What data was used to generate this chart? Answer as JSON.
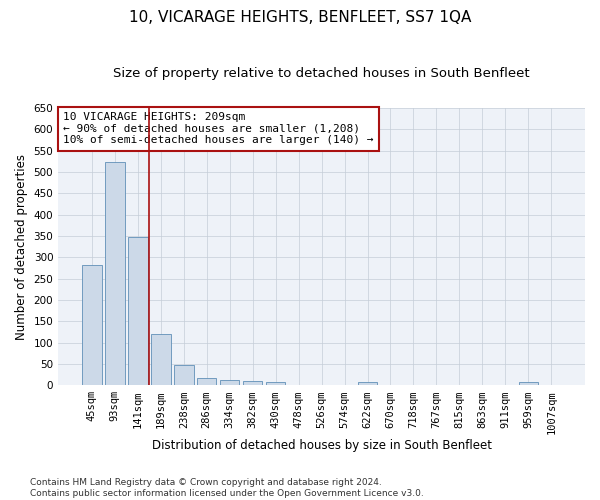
{
  "title": "10, VICARAGE HEIGHTS, BENFLEET, SS7 1QA",
  "subtitle": "Size of property relative to detached houses in South Benfleet",
  "xlabel": "Distribution of detached houses by size in South Benfleet",
  "ylabel": "Number of detached properties",
  "bar_color": "#ccd9e8",
  "bar_edge_color": "#6090b8",
  "categories": [
    "45sqm",
    "93sqm",
    "141sqm",
    "189sqm",
    "238sqm",
    "286sqm",
    "334sqm",
    "382sqm",
    "430sqm",
    "478sqm",
    "526sqm",
    "574sqm",
    "622sqm",
    "670sqm",
    "718sqm",
    "767sqm",
    "815sqm",
    "863sqm",
    "911sqm",
    "959sqm",
    "1007sqm"
  ],
  "values": [
    283,
    524,
    347,
    120,
    48,
    17,
    12,
    10,
    7,
    0,
    0,
    0,
    8,
    0,
    0,
    0,
    0,
    0,
    0,
    7,
    0
  ],
  "ylim": [
    0,
    650
  ],
  "yticks": [
    0,
    50,
    100,
    150,
    200,
    250,
    300,
    350,
    400,
    450,
    500,
    550,
    600,
    650
  ],
  "vline_x": 2.5,
  "vline_color": "#aa1111",
  "annotation_text": "10 VICARAGE HEIGHTS: 209sqm\n← 90% of detached houses are smaller (1,208)\n10% of semi-detached houses are larger (140) →",
  "annotation_box_color": "#ffffff",
  "annotation_box_edge": "#aa1111",
  "footer_text": "Contains HM Land Registry data © Crown copyright and database right 2024.\nContains public sector information licensed under the Open Government Licence v3.0.",
  "background_color": "#eef2f8",
  "grid_color": "#c5cdd8",
  "title_fontsize": 11,
  "subtitle_fontsize": 9.5,
  "axis_label_fontsize": 8.5,
  "tick_fontsize": 7.5,
  "footer_fontsize": 6.5
}
